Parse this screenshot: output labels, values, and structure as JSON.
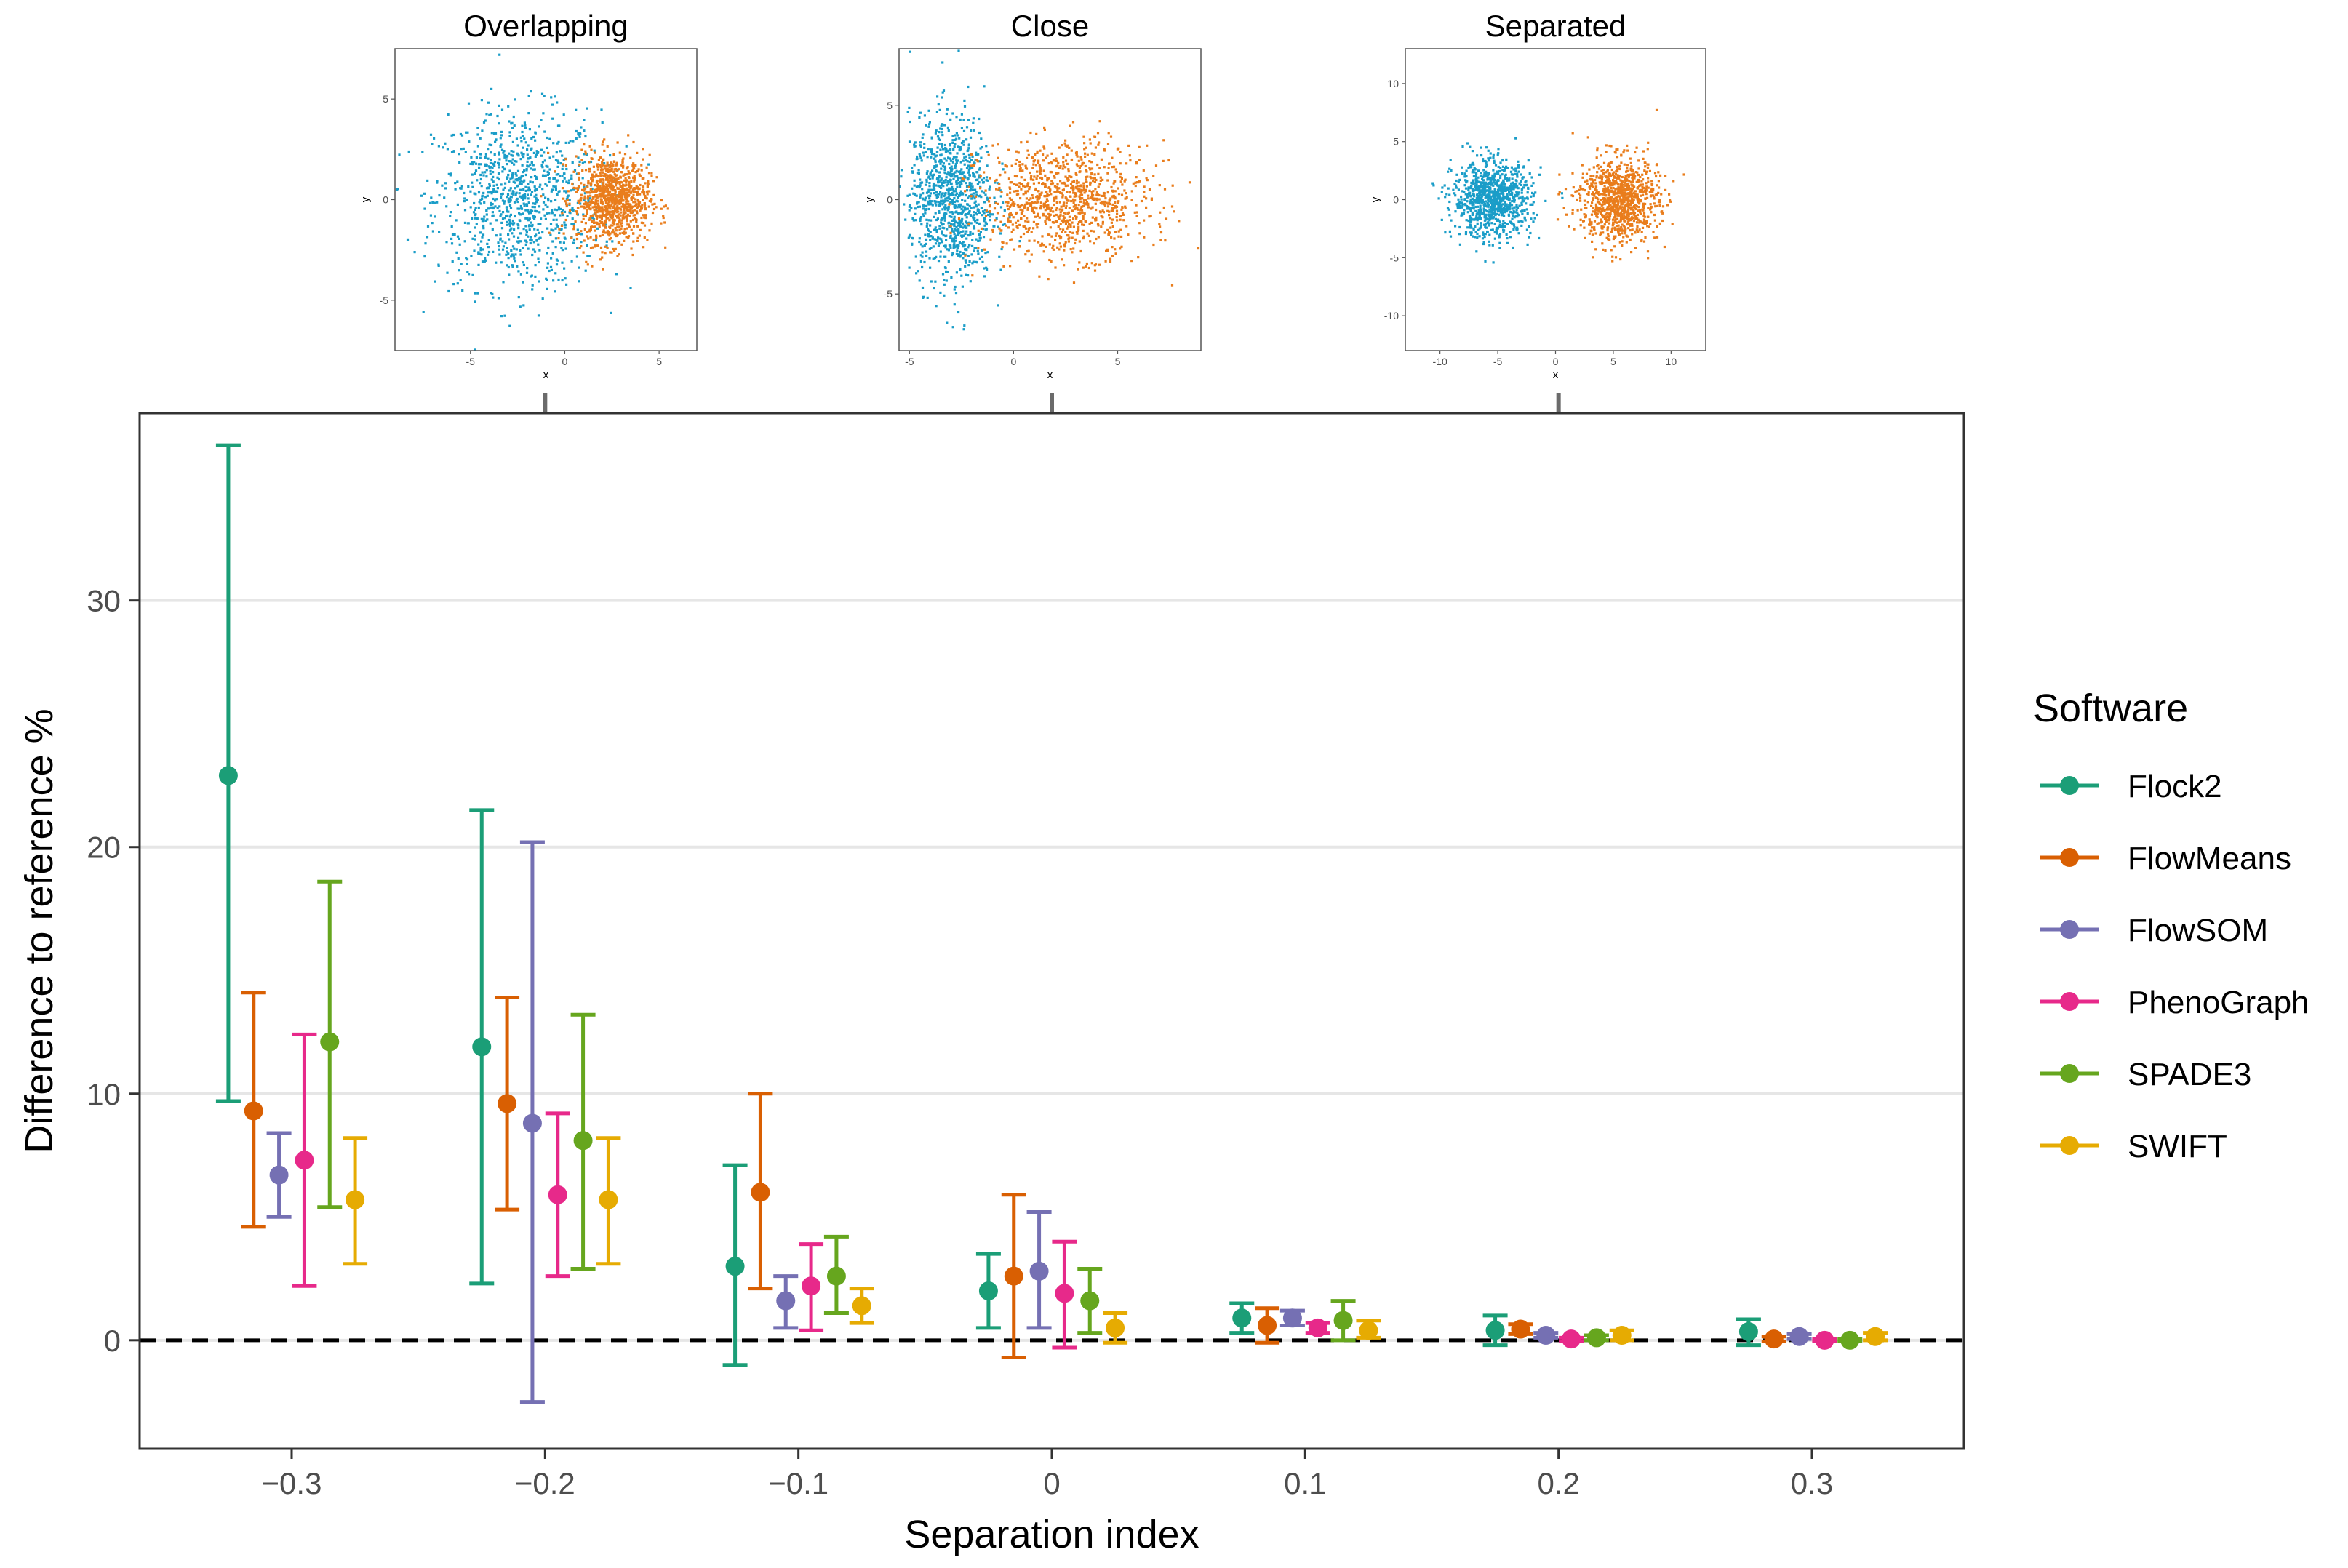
{
  "insets": [
    {
      "title": "Overlapping",
      "xlabel": "x",
      "ylabel": "y",
      "xlim": [
        -9,
        7
      ],
      "ylim": [
        -7.5,
        7.5
      ],
      "xticks": [
        -5,
        0,
        5
      ],
      "yticks": [
        -5,
        0,
        5
      ],
      "clusters": [
        {
          "cx": -2.5,
          "cy": 0,
          "sx": 2.2,
          "sy": 2.2,
          "n": 1000,
          "color": "#1a9dc8"
        },
        {
          "cx": 2.5,
          "cy": 0,
          "sx": 1.0,
          "sy": 1.1,
          "n": 1000,
          "color": "#e97d1c"
        }
      ],
      "arrow_to_x": -0.2
    },
    {
      "title": "Close",
      "xlabel": "x",
      "ylabel": "y",
      "xlim": [
        -5.5,
        9
      ],
      "ylim": [
        -8,
        8
      ],
      "xticks": [
        -5,
        0,
        5
      ],
      "yticks": [
        -5,
        0,
        5
      ],
      "clusters": [
        {
          "cx": -3.0,
          "cy": 0,
          "sx": 1.0,
          "sy": 2.2,
          "n": 1000,
          "color": "#1a9dc8"
        },
        {
          "cx": 2.5,
          "cy": 0,
          "sx": 2.0,
          "sy": 1.5,
          "n": 1000,
          "color": "#e97d1c"
        }
      ],
      "arrow_to_x": 0.0
    },
    {
      "title": "Separated",
      "xlabel": "x",
      "ylabel": "y",
      "xlim": [
        -13,
        13
      ],
      "ylim": [
        -13,
        13
      ],
      "xticks": [
        -10,
        -5,
        0,
        5,
        10
      ],
      "yticks": [
        -10,
        -5,
        0,
        5,
        10
      ],
      "clusters": [
        {
          "cx": -5.5,
          "cy": 0,
          "sx": 1.7,
          "sy": 1.6,
          "n": 1000,
          "color": "#1a9dc8"
        },
        {
          "cx": 5.5,
          "cy": 0,
          "sx": 1.7,
          "sy": 1.8,
          "n": 1000,
          "color": "#e97d1c"
        }
      ],
      "arrow_to_x": 0.2
    }
  ],
  "chart_data": {
    "type": "scatter",
    "subtype": "point-with-errorbars",
    "xlabel": "Separation index",
    "ylabel": "Difference to reference %",
    "xlim": [
      -0.36,
      0.36
    ],
    "ylim": [
      -4.4,
      37.6
    ],
    "xticks": [
      -0.3,
      -0.2,
      -0.1,
      0,
      0.1,
      0.2,
      0.3
    ],
    "xtick_labels": [
      "−0.3",
      "−0.2",
      "−0.1",
      "0",
      "0.1",
      "0.2",
      "0.3"
    ],
    "yticks": [
      0,
      10,
      20,
      30
    ],
    "ytick_labels": [
      "0",
      "10",
      "20",
      "30"
    ],
    "grid": "horizontal major",
    "reference_line": {
      "y": 0,
      "style": "dashed"
    },
    "dodge_width": 0.01,
    "legend": {
      "title": "Software",
      "position": "right"
    },
    "x": [
      -0.3,
      -0.2,
      -0.1,
      0,
      0.1,
      0.2,
      0.3
    ],
    "series": [
      {
        "name": "Flock2",
        "color": "#1b9e77",
        "mean": [
          22.9,
          11.9,
          3.0,
          2.0,
          0.9,
          0.4,
          0.35
        ],
        "lower": [
          9.7,
          2.3,
          -1.0,
          0.5,
          0.3,
          -0.2,
          -0.2
        ],
        "upper": [
          36.3,
          21.5,
          7.1,
          3.5,
          1.5,
          1.0,
          0.85
        ]
      },
      {
        "name": "FlowMeans",
        "color": "#d95f02",
        "mean": [
          9.3,
          9.6,
          6.0,
          2.6,
          0.6,
          0.45,
          0.05
        ],
        "lower": [
          4.6,
          5.3,
          2.1,
          -0.7,
          -0.1,
          0.25,
          -0.05
        ],
        "upper": [
          14.1,
          13.9,
          10.0,
          5.9,
          1.3,
          0.65,
          0.15
        ]
      },
      {
        "name": "FlowSOM",
        "color": "#7570b3",
        "mean": [
          6.7,
          8.8,
          1.6,
          2.8,
          0.9,
          0.2,
          0.15
        ],
        "lower": [
          5.0,
          -2.5,
          0.5,
          0.5,
          0.6,
          0.1,
          0.05
        ],
        "upper": [
          8.4,
          20.2,
          2.6,
          5.2,
          1.2,
          0.3,
          0.25
        ]
      },
      {
        "name": "PhenoGraph",
        "color": "#e7298a",
        "mean": [
          7.3,
          5.9,
          2.2,
          1.9,
          0.5,
          0.05,
          0.0
        ],
        "lower": [
          2.2,
          2.6,
          0.4,
          -0.3,
          0.3,
          -0.05,
          -0.05
        ],
        "upper": [
          12.4,
          9.2,
          3.9,
          4.0,
          0.7,
          0.1,
          0.05
        ]
      },
      {
        "name": "SPADE3",
        "color": "#66a61e",
        "mean": [
          12.1,
          8.1,
          2.6,
          1.6,
          0.8,
          0.1,
          0.0
        ],
        "lower": [
          5.4,
          2.9,
          1.1,
          0.3,
          0.0,
          0.0,
          -0.05
        ],
        "upper": [
          18.6,
          13.2,
          4.2,
          2.9,
          1.6,
          0.2,
          0.05
        ]
      },
      {
        "name": "SWIFT",
        "color": "#e6ab02",
        "mean": [
          5.7,
          5.7,
          1.4,
          0.5,
          0.4,
          0.2,
          0.15
        ],
        "lower": [
          3.1,
          3.1,
          0.7,
          -0.1,
          0.1,
          0.0,
          0.0
        ],
        "upper": [
          8.2,
          8.2,
          2.1,
          1.1,
          0.8,
          0.4,
          0.3
        ]
      }
    ]
  }
}
